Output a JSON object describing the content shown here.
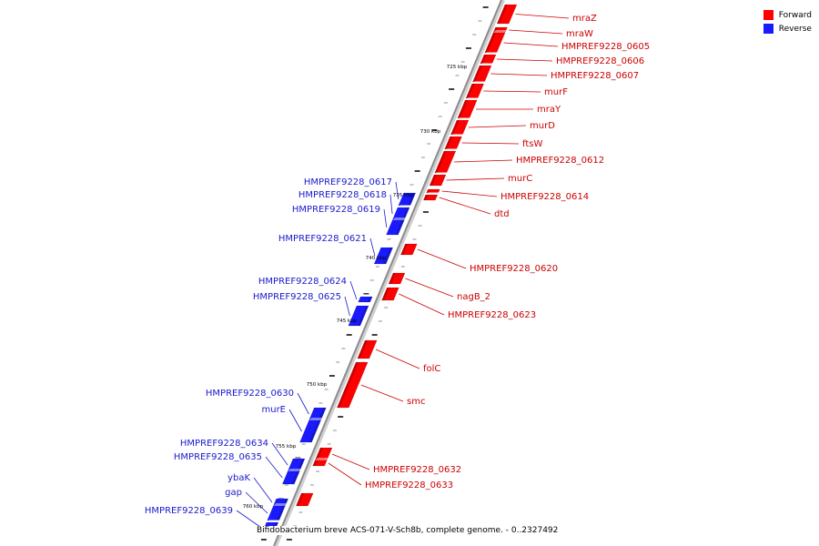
{
  "colors": {
    "forward": "#ff0000",
    "reverse": "#1a1aff",
    "backbone": "#8c8c8c"
  },
  "legend": [
    {
      "label": "Forward",
      "color": "#ff0000"
    },
    {
      "label": "Reverse",
      "color": "#1a1aff"
    }
  ],
  "caption": "Bifidobacterium breve ACS-071-V-Sch8b, complete genome. - 0..2327492",
  "axis_labels": [
    "725 kbp",
    "730 kbp",
    "735 kbp",
    "740 kbp",
    "745 kbp",
    "750 kbp",
    "755 kbp",
    "760 kbp"
  ],
  "forward_genes": [
    "mraZ",
    "mraW",
    "HMPREF9228_0605",
    "HMPREF9228_0606",
    "HMPREF9228_0607",
    "murF",
    "mraY",
    "murD",
    "ftsW",
    "HMPREF9228_0612",
    "murC",
    "HMPREF9228_0614",
    "dtd",
    "HMPREF9228_0620",
    "nagB_2",
    "HMPREF9228_0623",
    "folC",
    "smc",
    "HMPREF9228_0632",
    "HMPREF9228_0633"
  ],
  "reverse_genes": [
    "HMPREF9228_0617",
    "HMPREF9228_0618",
    "HMPREF9228_0619",
    "HMPREF9228_0621",
    "HMPREF9228_0624",
    "HMPREF9228_0625",
    "HMPREF9228_0630",
    "murE",
    "HMPREF9228_0634",
    "HMPREF9228_0635",
    "ybaK",
    "gap",
    "HMPREF9228_0639"
  ]
}
